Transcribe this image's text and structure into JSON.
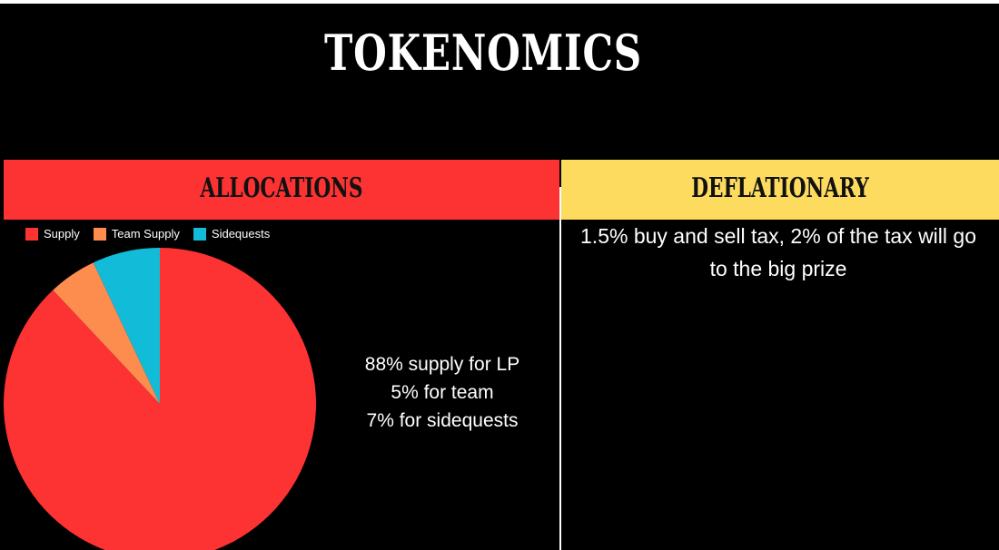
{
  "title": "TOKENOMICS",
  "allocations": {
    "heading": "ALLOCATIONS",
    "text_lines": [
      "88% supply for LP",
      "5% for team",
      "7% for sidequests"
    ]
  },
  "deflationary": {
    "heading": "DEFLATIONARY",
    "text": "1.5% buy and sell tax, 2% of the tax will go to the big prize"
  },
  "colors": {
    "background": "#000000",
    "allocations_band": "#fc3332",
    "deflationary_band": "#fddb5e",
    "supply": "#fc3332",
    "team_supply": "#fd8c4f",
    "sidequests": "#12bcd9"
  },
  "chart_data": {
    "type": "pie",
    "title": "",
    "legend_position": "top-left",
    "slices": [
      {
        "label": "Supply",
        "value": 88,
        "color": "#fc3332"
      },
      {
        "label": "Team Supply",
        "value": 5,
        "color": "#fd8c4f"
      },
      {
        "label": "Sidequests",
        "value": 7,
        "color": "#12bcd9"
      }
    ]
  }
}
